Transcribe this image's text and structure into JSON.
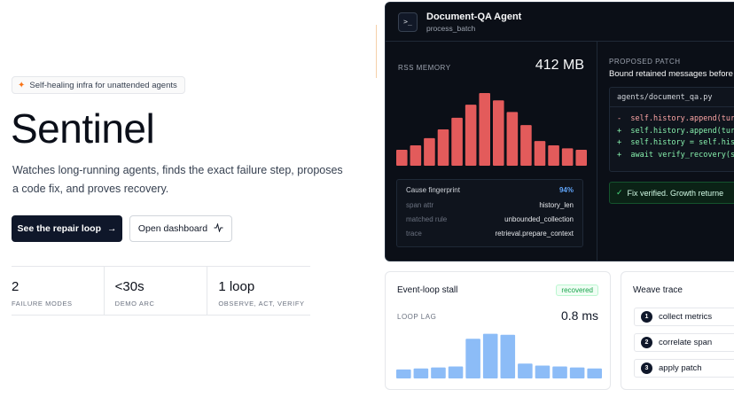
{
  "hero": {
    "badge": "Self-healing infra for unattended agents",
    "title": "Sentinel",
    "subtitle": "Watches long-running agents, finds the exact failure step, proposes a code fix, and proves recovery.",
    "primary_button": "See the repair loop",
    "secondary_button": "Open dashboard",
    "stats": [
      {
        "value": "2",
        "label": "FAILURE MODES"
      },
      {
        "value": "<30s",
        "label": "DEMO ARC"
      },
      {
        "value": "1 loop",
        "label": "OBSERVE, ACT, VERIFY"
      }
    ]
  },
  "agent": {
    "title": "Document-QA Agent",
    "subtitle": "process_batch",
    "memory": {
      "label": "RSS MEMORY",
      "value": "412 MB",
      "bars": [
        22,
        28,
        38,
        50,
        66,
        84,
        100,
        90,
        74,
        56,
        34,
        28,
        24,
        22
      ],
      "bar_color": "#e35b5b"
    },
    "fingerprint": {
      "title": "Cause fingerprint",
      "confidence": "94%",
      "rows": [
        {
          "key": "span attr",
          "value": "history_len"
        },
        {
          "key": "matched rule",
          "value": "unbounded_collection"
        },
        {
          "key": "trace",
          "value": "retrieval.prepare_context"
        }
      ]
    },
    "patch": {
      "label": "PROPOSED PATCH",
      "title": "Bound retained messages before",
      "file": "agents/document_qa.py",
      "lines": [
        {
          "sign": "-",
          "code": "self.history.append(turn)",
          "type": "del"
        },
        {
          "sign": "+",
          "code": "self.history.append(turn)",
          "type": "add"
        },
        {
          "sign": "+",
          "code": "self.history = self.histo",
          "type": "add"
        },
        {
          "sign": "+",
          "code": "await verify_recovery(sig",
          "type": "add"
        }
      ],
      "verified": "Fix verified. Growth returne"
    }
  },
  "event_loop": {
    "title": "Event-loop stall",
    "status": "recovered",
    "lag_label": "LOOP LAG",
    "lag_value": "0.8 ms",
    "bars": [
      18,
      20,
      22,
      24,
      80,
      90,
      88,
      30,
      26,
      24,
      22,
      20
    ],
    "bar_color": "#8cbcf7"
  },
  "weave": {
    "title": "Weave trace",
    "steps": [
      {
        "num": "1",
        "label": "collect metrics"
      },
      {
        "num": "2",
        "label": "correlate span"
      },
      {
        "num": "3",
        "label": "apply patch"
      }
    ]
  },
  "icons": {
    "badge": "sparkle-icon",
    "primary_button": "arrow-right-icon",
    "secondary_button": "activity-icon",
    "agent": "terminal-icon",
    "verified": "check-icon"
  }
}
